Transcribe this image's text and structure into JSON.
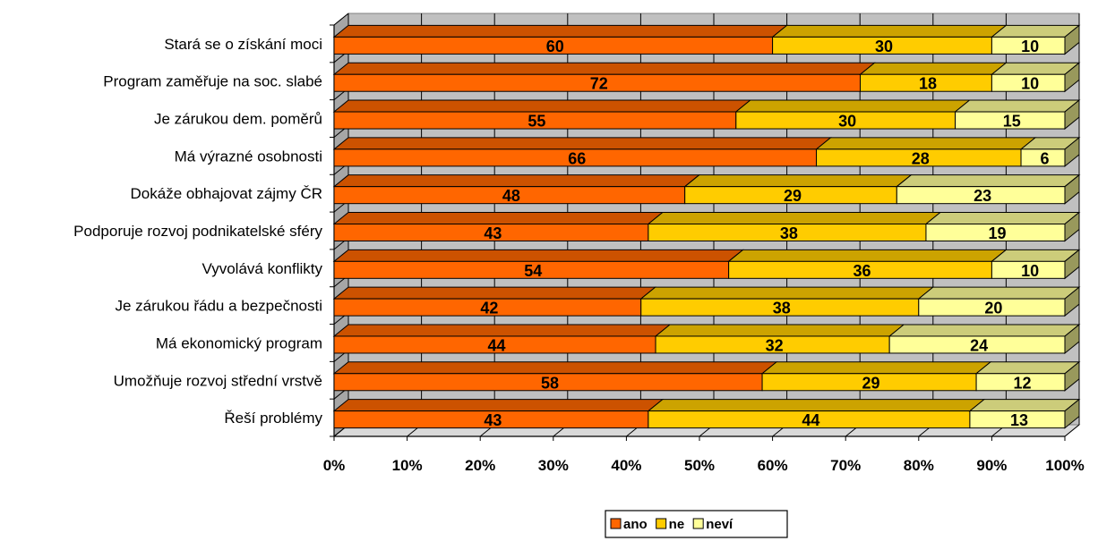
{
  "chart_data": {
    "type": "bar",
    "orientation": "horizontal",
    "stacked": "100%",
    "categories": [
      "Stará se o získání moci",
      "Program zaměřuje na soc. slabé",
      "Je zárukou dem. poměrů",
      "Má výrazné osobnosti",
      "Dokáže obhajovat zájmy ČR",
      "Podporuje rozvoj podnikatelské sféry",
      "Vyvolává konflikty",
      "Je zárukou řádu a bezpečnosti",
      "Má ekonomický program",
      "Umožňuje rozvoj střední vrstvě",
      "Řeší problémy"
    ],
    "series": [
      {
        "name": "ano",
        "color": "#FF6600",
        "values": [
          60,
          72,
          55,
          66,
          48,
          43,
          54,
          42,
          44,
          58,
          43
        ]
      },
      {
        "name": "ne",
        "color": "#FFCC00",
        "values": [
          30,
          18,
          30,
          28,
          29,
          38,
          36,
          38,
          32,
          29,
          44
        ]
      },
      {
        "name": "neví",
        "color": "#FFFF99",
        "values": [
          10,
          10,
          15,
          6,
          23,
          19,
          10,
          20,
          24,
          12,
          13
        ]
      }
    ],
    "x_ticks": [
      "0%",
      "10%",
      "20%",
      "30%",
      "40%",
      "50%",
      "60%",
      "70%",
      "80%",
      "90%",
      "100%"
    ],
    "xlim": [
      0,
      100
    ],
    "grid": true,
    "legend_position": "bottom",
    "style": "3d",
    "wall_color": "#C0C0C0"
  }
}
